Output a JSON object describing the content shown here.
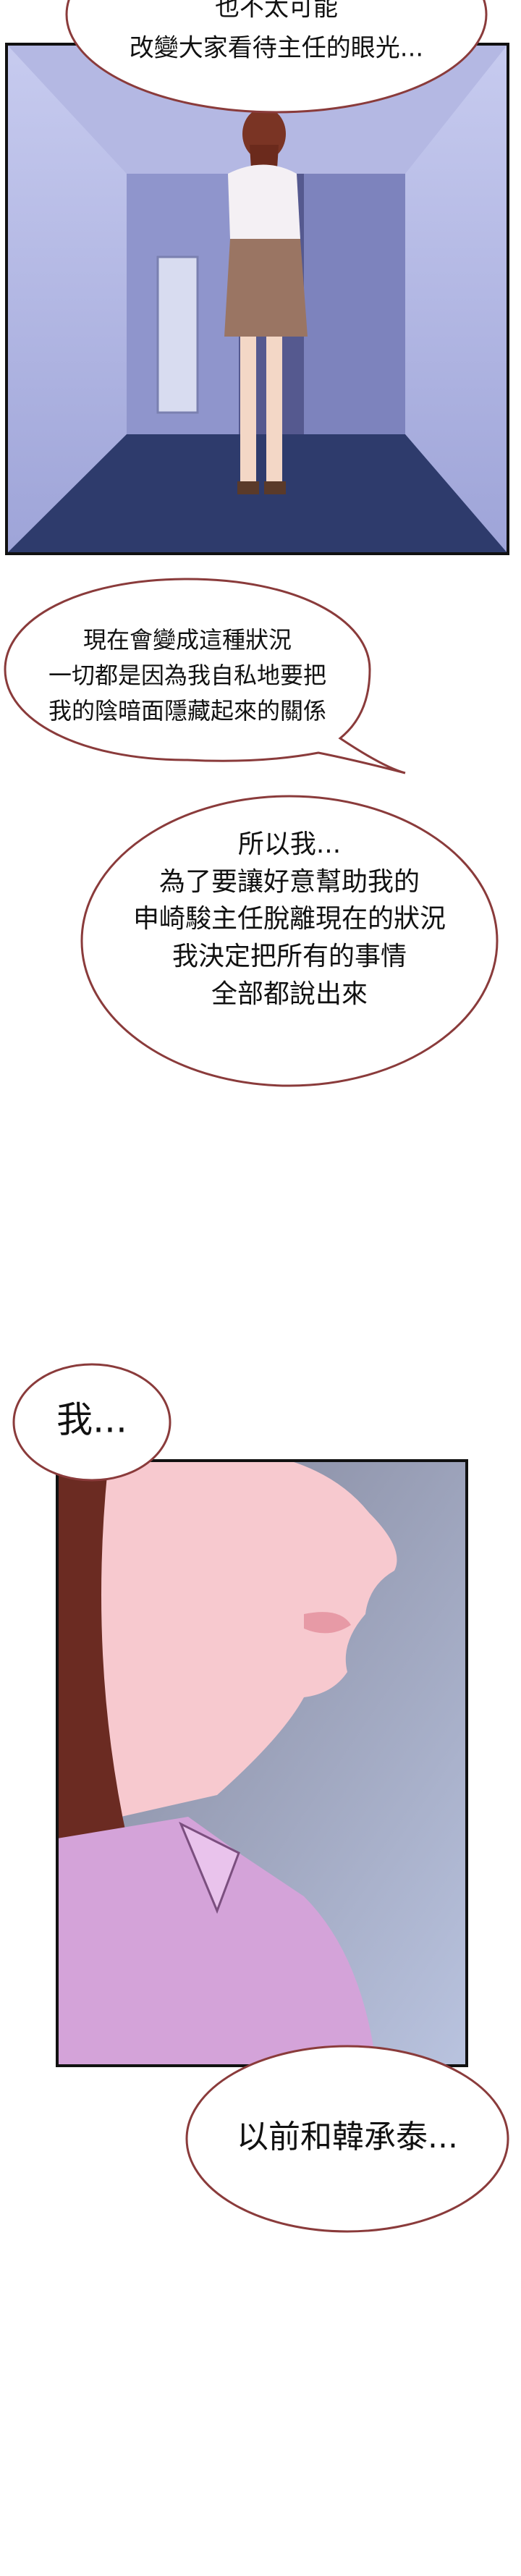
{
  "bubbles": [
    {
      "lines": [
        "也不太可能",
        "改變大家看待主任的眼光..."
      ]
    },
    {
      "lines": [
        "現在會變成這種狀況",
        "一切都是因為我自私地要把",
        "我的陰暗面隱藏起來的關係"
      ]
    },
    {
      "lines": [
        "所以我...",
        "為了要讓好意幫助我的",
        "申崎駿主任脫離現在的狀況",
        "我決定把所有的事情",
        "全部都說出來"
      ]
    },
    {
      "lines": [
        "我..."
      ]
    },
    {
      "lines": [
        "以前和韓承泰..."
      ]
    }
  ]
}
